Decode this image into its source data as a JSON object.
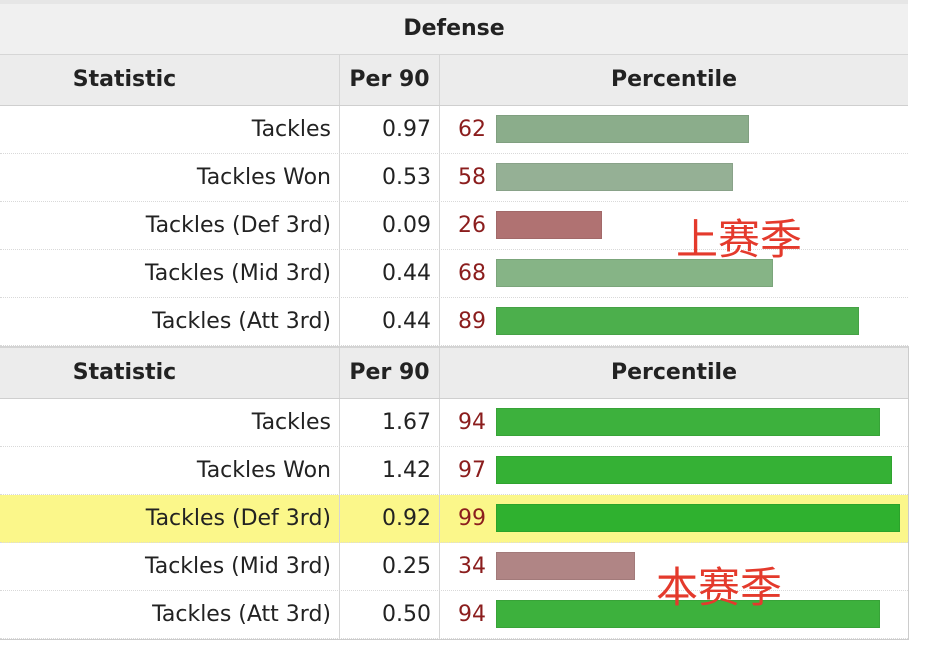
{
  "section_title": "Defense",
  "headers": {
    "statistic": "Statistic",
    "per90": "Per 90",
    "percentile": "Percentile"
  },
  "last_season": {
    "label": "上赛季",
    "rows": [
      {
        "stat": "Tackles",
        "per90": "0.97",
        "percentile": 62,
        "pct_label": "62",
        "bar_color": "#8bad8b"
      },
      {
        "stat": "Tackles Won",
        "per90": "0.53",
        "percentile": 58,
        "pct_label": "58",
        "bar_color": "#95b095"
      },
      {
        "stat": "Tackles (Def 3rd)",
        "per90": "0.09",
        "percentile": 26,
        "pct_label": "26",
        "bar_color": "#b07272"
      },
      {
        "stat": "Tackles (Mid 3rd)",
        "per90": "0.44",
        "percentile": 68,
        "pct_label": "68",
        "bar_color": "#86b486"
      },
      {
        "stat": "Tackles (Att 3rd)",
        "per90": "0.44",
        "percentile": 89,
        "pct_label": "89",
        "bar_color": "#4caf4c"
      }
    ]
  },
  "this_season": {
    "label": "本赛季",
    "rows": [
      {
        "stat": "Tackles",
        "per90": "1.67",
        "percentile": 94,
        "pct_label": "94",
        "bar_color": "#3db13d",
        "highlight": false
      },
      {
        "stat": "Tackles Won",
        "per90": "1.42",
        "percentile": 97,
        "pct_label": "97",
        "bar_color": "#35b135",
        "highlight": false
      },
      {
        "stat": "Tackles (Def 3rd)",
        "per90": "0.92",
        "percentile": 99,
        "pct_label": "99",
        "bar_color": "#2fb12f",
        "highlight": true
      },
      {
        "stat": "Tackles (Mid 3rd)",
        "per90": "0.25",
        "percentile": 34,
        "pct_label": "34",
        "bar_color": "#b08585",
        "highlight": false
      },
      {
        "stat": "Tackles (Att 3rd)",
        "per90": "0.50",
        "percentile": 94,
        "pct_label": "94",
        "bar_color": "#3db13d",
        "highlight": false
      }
    ]
  }
}
